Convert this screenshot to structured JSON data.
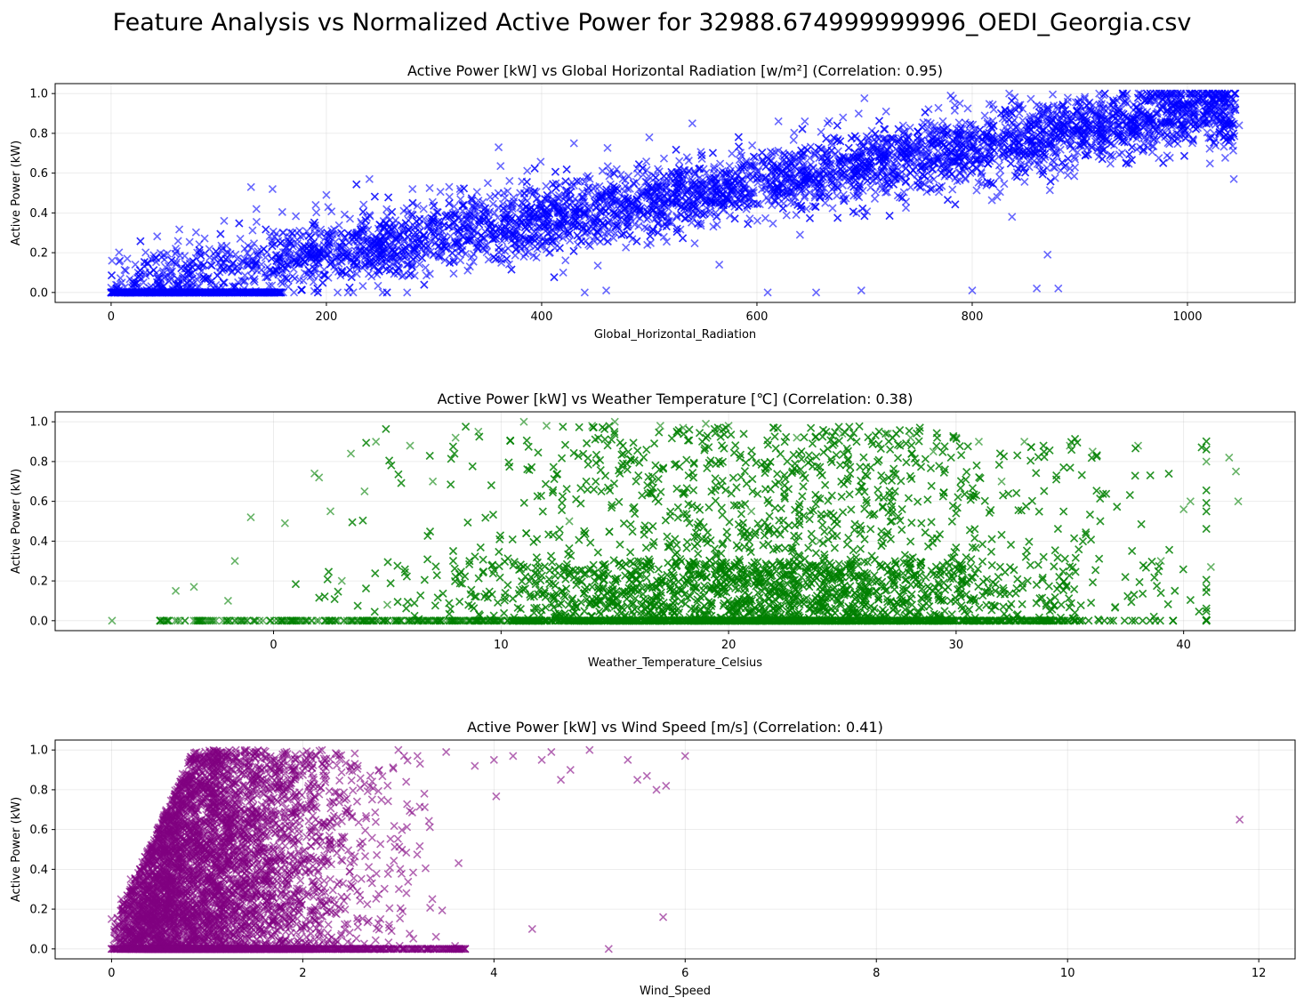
{
  "figure": {
    "suptitle": "Feature Analysis vs Normalized Active Power for 32988.674999999996_OEDI_Georgia.csv"
  },
  "chart_data": [
    {
      "type": "scatter",
      "title": "Active Power [kW] vs Global Horizontal Radiation [w/m²] (Correlation: 0.95)",
      "xlabel": "Global_Horizontal_Radiation",
      "ylabel": "Active Power (kW)",
      "xlim": [
        -52,
        1100
      ],
      "ylim": [
        -0.05,
        1.05
      ],
      "xticks": [
        0,
        200,
        400,
        600,
        800,
        1000
      ],
      "yticks": [
        0.0,
        0.2,
        0.4,
        0.6,
        0.8,
        1.0
      ],
      "grid": true,
      "marker": "x",
      "color": "#0000ff",
      "series": [
        {
          "x": [
            0,
            0,
            0,
            0,
            5,
            10,
            15,
            20,
            25,
            30,
            40,
            50,
            60,
            70,
            80,
            100,
            105,
            120,
            130,
            135,
            150,
            160,
            175,
            200,
            210,
            220,
            240,
            250,
            275,
            280,
            300,
            320,
            350,
            360,
            380,
            400,
            420,
            430,
            440,
            450,
            460,
            480,
            500,
            520,
            540,
            560,
            565,
            600,
            610,
            620,
            640,
            655,
            660,
            680,
            697,
            700,
            720,
            740,
            760,
            780,
            800,
            820,
            837,
            840,
            860,
            870,
            880,
            900,
            920,
            940,
            960,
            980,
            1000,
            1020,
            1040,
            1048
          ],
          "y": [
            0.0,
            0.0,
            0.0,
            0.0,
            0.01,
            0.05,
            0.17,
            0.02,
            0.1,
            0.05,
            0.17,
            0.08,
            0.22,
            0.12,
            0.2,
            0.15,
            0.36,
            0.27,
            0.53,
            0.42,
            0.52,
            0.3,
            0.31,
            0.49,
            0.22,
            0.0,
            0.57,
            0.3,
            0.0,
            0.52,
            0.35,
            0.4,
            0.55,
            0.73,
            0.5,
            0.42,
            0.1,
            0.75,
            0.0,
            0.53,
            0.01,
            0.52,
            0.78,
            0.55,
            0.85,
            0.62,
            0.14,
            0.61,
            0.0,
            0.86,
            0.29,
            0.0,
            0.72,
            0.88,
            0.01,
            0.65,
            0.91,
            0.75,
            0.79,
            0.99,
            0.01,
            0.92,
            0.38,
            0.68,
            0.02,
            0.19,
            0.02,
            0.97,
            0.76,
            0.99,
            0.78,
            0.96,
            0.83,
            0.86,
            0.91,
            0.84
          ]
        }
      ]
    },
    {
      "type": "scatter",
      "title": "Active Power [kW] vs Weather Temperature [℃] (Correlation: 0.38)",
      "xlabel": "Weather_Temperature_Celsius",
      "ylabel": "Active Power (kW)",
      "xlim": [
        -9.6,
        44.9
      ],
      "ylim": [
        -0.05,
        1.05
      ],
      "xticks": [
        0,
        10,
        20,
        30,
        40
      ],
      "yticks": [
        0.0,
        0.2,
        0.4,
        0.6,
        0.8,
        1.0
      ],
      "grid": true,
      "marker": "x",
      "color": "#008000",
      "series": [
        {
          "x": [
            -7.1,
            -5.0,
            -4.3,
            -3.5,
            -3.0,
            -2.0,
            -1.7,
            -1.0,
            0.3,
            0.5,
            1.5,
            1.8,
            2.0,
            2.5,
            3.0,
            3.4,
            4.0,
            4.5,
            5.0,
            6.0,
            7.0,
            8.0,
            9.0,
            10.0,
            11.0,
            12.0,
            13.0,
            14.0,
            15.0,
            16.0,
            17.0,
            18.0,
            19.0,
            20.0,
            21.0,
            22.0,
            23.0,
            24.0,
            25.0,
            26.0,
            27.0,
            28.0,
            29.0,
            30.0,
            31.0,
            32.0,
            33.0,
            34.0,
            35.0,
            36.0,
            37.0,
            38.0,
            39.0,
            40.0,
            40.3,
            41.0,
            41.2,
            42.0,
            42.3,
            42.4
          ],
          "y": [
            0.0,
            0.0,
            0.15,
            0.17,
            0.0,
            0.1,
            0.3,
            0.52,
            0.0,
            0.49,
            0.0,
            0.74,
            0.72,
            0.55,
            0.2,
            0.84,
            0.65,
            0.9,
            0.08,
            0.88,
            0.7,
            0.92,
            0.95,
            0.0,
            1.0,
            0.98,
            0.5,
            0.98,
            1.0,
            0.25,
            0.98,
            0.97,
            0.99,
            0.98,
            0.55,
            0.97,
            0.92,
            0.4,
            0.94,
            0.1,
            0.94,
            0.92,
            0.85,
            0.92,
            0.9,
            0.7,
            0.9,
            0.0,
            0.88,
            0.85,
            0.07,
            0.88,
            0.3,
            0.56,
            0.6,
            0.8,
            0.27,
            0.82,
            0.75,
            0.6
          ]
        }
      ]
    },
    {
      "type": "scatter",
      "title": "Active Power [kW] vs Wind Speed [m/s] (Correlation: 0.41)",
      "xlabel": "Wind_Speed",
      "ylabel": "Active Power (kW)",
      "xlim": [
        -0.59,
        12.38
      ],
      "ylim": [
        -0.05,
        1.05
      ],
      "xticks": [
        0,
        2,
        4,
        6,
        8,
        10,
        12
      ],
      "yticks": [
        0.0,
        0.2,
        0.4,
        0.6,
        0.8,
        1.0
      ],
      "grid": true,
      "marker": "x",
      "color": "#800080",
      "series": [
        {
          "x": [
            0.0,
            0.0,
            0.05,
            0.1,
            0.2,
            0.3,
            0.4,
            0.5,
            0.7,
            0.8,
            1.0,
            1.1,
            1.2,
            1.3,
            1.5,
            1.6,
            1.8,
            1.9,
            2.0,
            2.2,
            2.5,
            2.8,
            3.0,
            3.2,
            3.5,
            3.7,
            3.8,
            4.0,
            4.2,
            4.4,
            4.5,
            4.6,
            4.7,
            4.8,
            5.0,
            5.2,
            5.4,
            5.5,
            5.6,
            5.7,
            5.8,
            6.0,
            5.77,
            11.8
          ],
          "y": [
            0.0,
            0.15,
            0.05,
            0.25,
            0.35,
            0.4,
            0.5,
            0.55,
            0.7,
            0.85,
            0.92,
            0.95,
            0.97,
            1.0,
            0.98,
            0.96,
            0.95,
            0.9,
            0.98,
            0.93,
            0.92,
            0.9,
            1.0,
            0.97,
            0.99,
            0.0,
            0.92,
            0.95,
            0.97,
            0.1,
            0.95,
            0.99,
            0.85,
            0.9,
            1.0,
            0.0,
            0.95,
            0.85,
            0.87,
            0.8,
            0.82,
            0.97,
            0.16,
            0.65
          ]
        }
      ]
    }
  ]
}
